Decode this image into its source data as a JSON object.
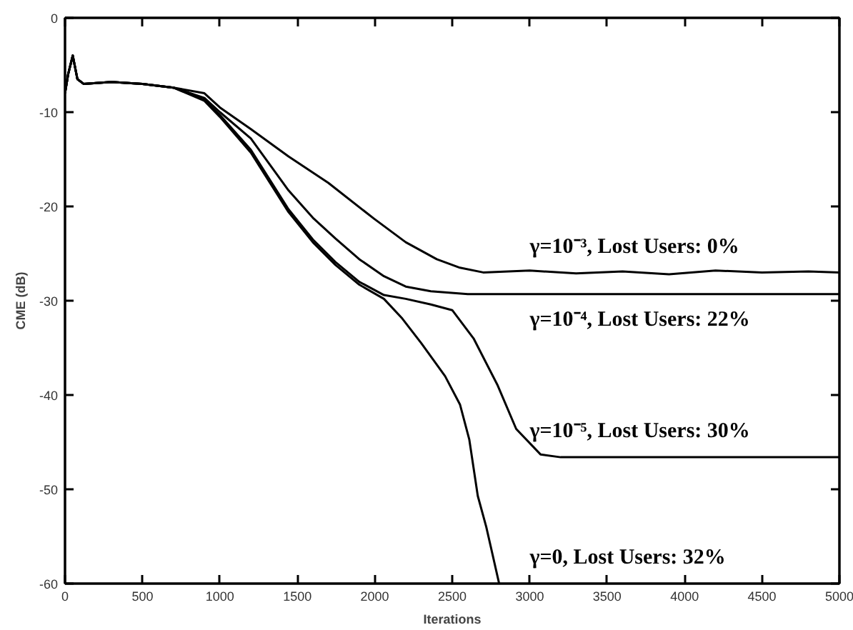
{
  "chart_data": {
    "type": "line",
    "xlabel": "Iterations",
    "ylabel": "CME (dB)",
    "xlim": [
      0,
      5000
    ],
    "ylim": [
      -60,
      0
    ],
    "xticks": [
      0,
      500,
      1000,
      1500,
      2000,
      2500,
      3000,
      3500,
      4000,
      4500,
      5000
    ],
    "yticks": [
      -60,
      -50,
      -40,
      -30,
      -20,
      -10,
      0
    ],
    "grid": false,
    "marker": "none",
    "line_style": "solid",
    "series": [
      {
        "name": "γ=10⁻³,  Lost Users: 0%",
        "color": "#000000",
        "x": [
          0,
          20,
          50,
          80,
          120,
          300,
          500,
          700,
          900,
          1000,
          1200,
          1443,
          1700,
          1995,
          2200,
          2400,
          2550,
          2700,
          3000,
          3300,
          3600,
          3900,
          4200,
          4500,
          4800,
          5000
        ],
        "values": [
          -8,
          -6,
          -4,
          -6.5,
          -7,
          -6.8,
          -7,
          -7.4,
          -8,
          -9.5,
          -11.8,
          -14.7,
          -17.5,
          -21.3,
          -23.8,
          -25.6,
          -26.5,
          -27,
          -26.8,
          -27.1,
          -26.9,
          -27.2,
          -26.8,
          -27,
          -26.9,
          -27
        ]
      },
      {
        "name": "γ=10⁻⁴, Lost Users: 22%",
        "color": "#000000",
        "x": [
          0,
          20,
          50,
          80,
          120,
          300,
          500,
          700,
          900,
          1000,
          1200,
          1443,
          1600,
          1746,
          1900,
          2059,
          2200,
          2362,
          2600,
          5000
        ],
        "values": [
          -8,
          -6,
          -4,
          -6.5,
          -7,
          -6.8,
          -7,
          -7.4,
          -8.5,
          -10,
          -12.8,
          -18.3,
          -21.2,
          -23.4,
          -25.6,
          -27.4,
          -28.5,
          -29,
          -29.3,
          -29.3
        ]
      },
      {
        "name": "γ=10⁻⁵, Lost Users: 30%",
        "color": "#000000",
        "x": [
          0,
          20,
          50,
          80,
          120,
          300,
          500,
          700,
          900,
          1000,
          1200,
          1443,
          1600,
          1746,
          1900,
          2059,
          2200,
          2362,
          2500,
          2638,
          2794,
          2913,
          3070,
          3200,
          5000
        ],
        "values": [
          -8,
          -6,
          -4,
          -6.5,
          -7,
          -6.8,
          -7,
          -7.4,
          -8.7,
          -10.3,
          -14,
          -20.3,
          -23.5,
          -25.9,
          -28,
          -29.4,
          -29.8,
          -30.4,
          -31,
          -34,
          -39,
          -43.6,
          -46.3,
          -46.6,
          -46.6
        ]
      },
      {
        "name": "γ=0, Lost Users: 32%",
        "color": "#000000",
        "x": [
          0,
          20,
          50,
          80,
          120,
          300,
          500,
          700,
          900,
          1000,
          1200,
          1443,
          1600,
          1746,
          1900,
          2059,
          2178,
          2300,
          2454,
          2550,
          2610,
          2665,
          2720,
          2803
        ],
        "values": [
          -8,
          -6,
          -4,
          -6.5,
          -7,
          -6.8,
          -7,
          -7.4,
          -8.8,
          -10.5,
          -14.3,
          -20.6,
          -23.8,
          -26.2,
          -28.3,
          -29.8,
          -31.9,
          -34.5,
          -38,
          -41,
          -44.7,
          -50.7,
          -54,
          -60
        ]
      }
    ]
  }
}
